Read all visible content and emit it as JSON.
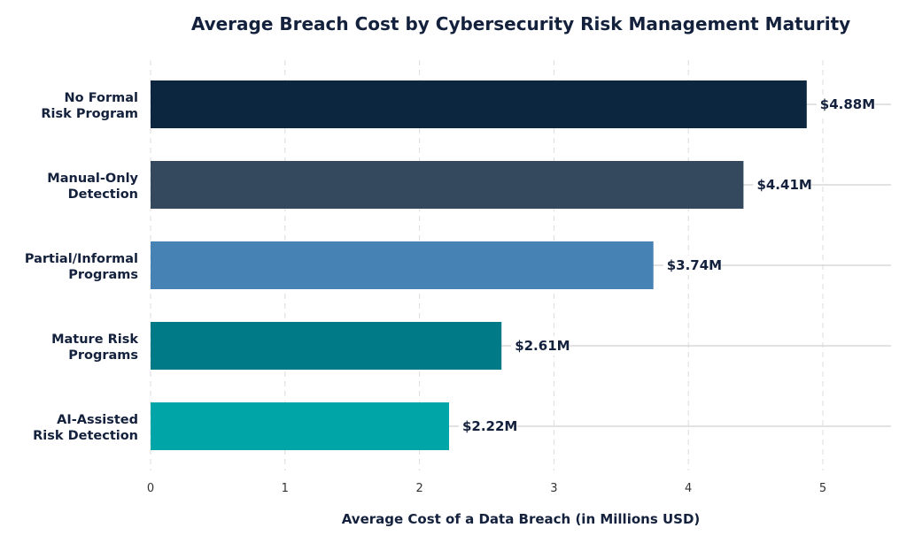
{
  "chart_data": {
    "type": "bar",
    "orientation": "horizontal",
    "title": "Average Breach Cost by Cybersecurity Risk Management Maturity",
    "xlabel": "Average Cost of a Data Breach (in Millions USD)",
    "ylabel": "",
    "xlim": [
      0,
      5.5
    ],
    "xticks": [
      0,
      1,
      2,
      3,
      4,
      5
    ],
    "grid": "vertical dashed",
    "categories": [
      [
        "No Formal",
        "Risk Program"
      ],
      [
        "Manual-Only",
        "Detection"
      ],
      [
        "Partial/Informal",
        "Programs"
      ],
      [
        "Mature Risk",
        "Programs"
      ],
      [
        "AI-Assisted",
        "Risk Detection"
      ]
    ],
    "values": [
      4.88,
      4.41,
      3.74,
      2.61,
      2.22
    ],
    "value_labels": [
      "$4.88M",
      "$4.41M",
      "$3.74M",
      "$2.61M",
      "$2.22M"
    ],
    "colors": [
      "#0d2640",
      "#34495e",
      "#4682b4",
      "#007a87",
      "#00a5a8"
    ]
  }
}
